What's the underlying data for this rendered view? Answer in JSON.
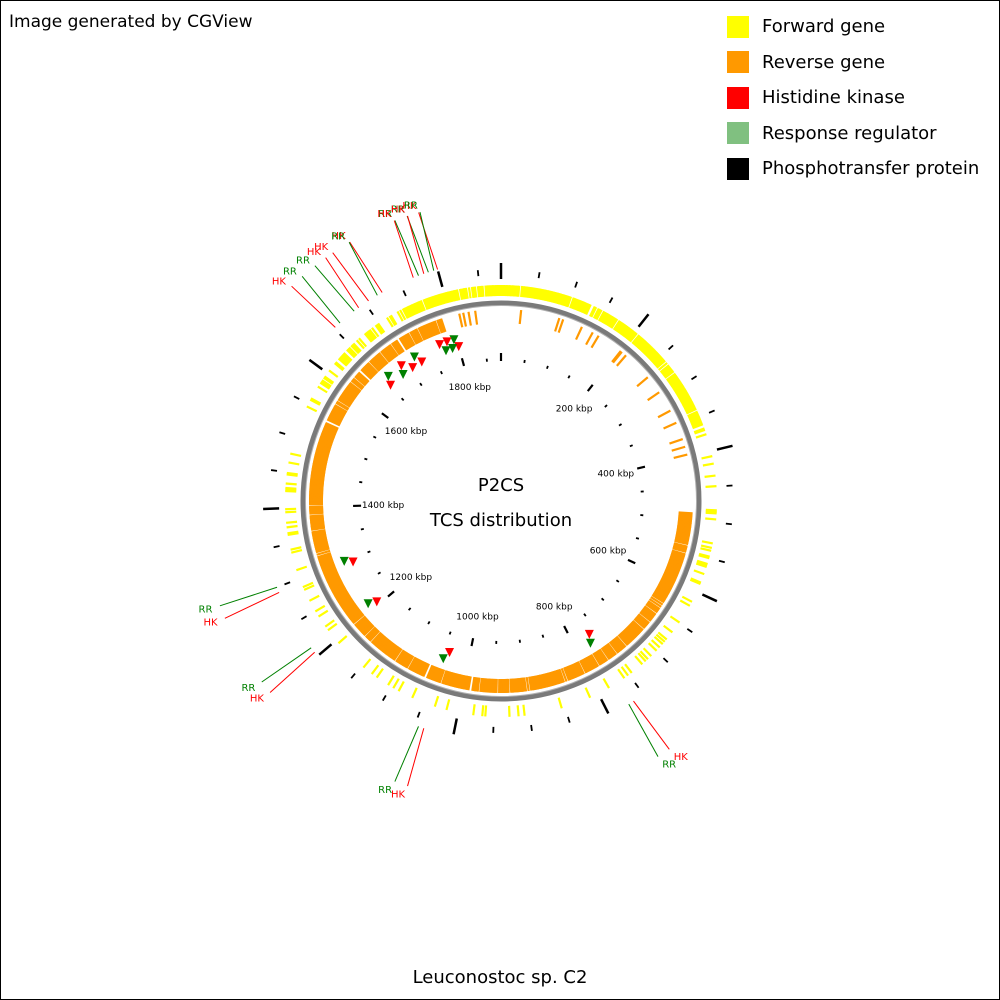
{
  "credit": "Image generated by CGView",
  "legend": [
    {
      "label": "Forward gene",
      "color": "#ffff00"
    },
    {
      "label": "Reverse gene",
      "color": "#ff9900"
    },
    {
      "label": "Histidine kinase",
      "color": "#ff0000"
    },
    {
      "label": "Response regulator",
      "color": "#80c080"
    },
    {
      "label": "Phosphotransfer protein",
      "color": "#000000"
    }
  ],
  "center": {
    "line1": "P2CS",
    "line2": "TCS distribution"
  },
  "organism": "Leuconostoc sp. C2",
  "ruler_labels": [
    "200 kbp",
    "400 kbp",
    "600 kbp",
    "800 kbp",
    "1000 kbp",
    "1200 kbp",
    "1400 kbp",
    "1600 kbp",
    "1800 kbp"
  ],
  "ruler_values_kbp": [
    200,
    400,
    600,
    800,
    1000,
    1200,
    1400,
    1600,
    1800
  ],
  "genome_length_kbp": 1880,
  "colors": {
    "forward": "#ffff00",
    "reverse": "#ff9900",
    "hk": "#ff0000",
    "rr": "#008000",
    "backbone": "#808080"
  },
  "tcs_features": [
    {
      "type": "HK",
      "position_kbp": 1800
    },
    {
      "type": "RR",
      "position_kbp": 1795
    },
    {
      "type": "RR",
      "position_kbp": 1788
    },
    {
      "type": "HK",
      "position_kbp": 1782
    },
    {
      "type": "RR",
      "position_kbp": 1775
    },
    {
      "type": "HK",
      "position_kbp": 1768
    },
    {
      "type": "HK",
      "position_kbp": 1725
    },
    {
      "type": "RR",
      "position_kbp": 1718
    },
    {
      "type": "HK",
      "position_kbp": 1705
    },
    {
      "type": "HK",
      "position_kbp": 1690
    },
    {
      "type": "RR",
      "position_kbp": 1683
    },
    {
      "type": "RR",
      "position_kbp": 1660
    },
    {
      "type": "HK",
      "position_kbp": 1652
    },
    {
      "type": "RR",
      "position_kbp": 1300
    },
    {
      "type": "HK",
      "position_kbp": 1293
    },
    {
      "type": "RR",
      "position_kbp": 1213
    },
    {
      "type": "HK",
      "position_kbp": 1206
    },
    {
      "type": "RR",
      "position_kbp": 1045
    },
    {
      "type": "HK",
      "position_kbp": 1038
    },
    {
      "type": "RR",
      "position_kbp": 772
    },
    {
      "type": "HK",
      "position_kbp": 765
    }
  ]
}
